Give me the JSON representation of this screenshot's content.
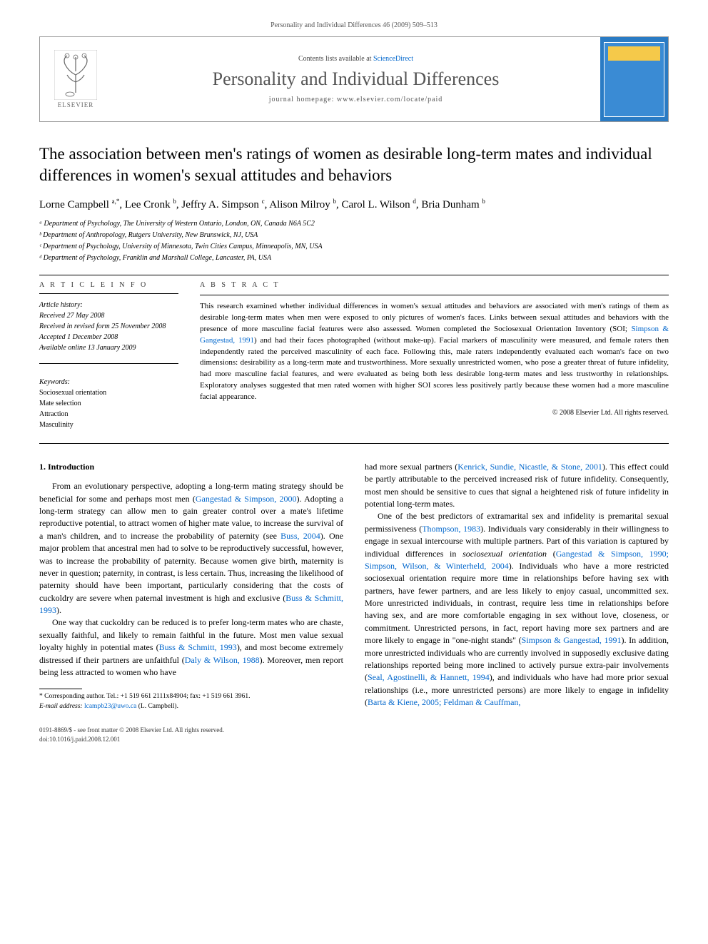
{
  "running_head": "Personality and Individual Differences 46 (2009) 509–513",
  "masthead": {
    "publisher": "ELSEVIER",
    "contents_prefix": "Contents lists available at ",
    "contents_link": "ScienceDirect",
    "journal": "Personality and Individual Differences",
    "homepage_prefix": "journal homepage: ",
    "homepage": "www.elsevier.com/locate/paid"
  },
  "title": "The association between men's ratings of women as desirable long-term mates and individual differences in women's sexual attitudes and behaviors",
  "authors_html": "Lorne Campbell <sup>a,*</sup>, Lee Cronk <sup>b</sup>, Jeffry A. Simpson <sup>c</sup>, Alison Milroy <sup>b</sup>, Carol L. Wilson <sup>d</sup>, Bria Dunham <sup>b</sup>",
  "affiliations": [
    "ᵃ Department of Psychology, The University of Western Ontario, London, ON, Canada N6A 5C2",
    "ᵇ Department of Anthropology, Rutgers University, New Brunswick, NJ, USA",
    "ᶜ Department of Psychology, University of Minnesota, Twin Cities Campus, Minneapolis, MN, USA",
    "ᵈ Department of Psychology, Franklin and Marshall College, Lancaster, PA, USA"
  ],
  "info_head": "A R T I C L E   I N F O",
  "abstract_head": "A B S T R A C T",
  "history": {
    "label": "Article history:",
    "received": "Received 27 May 2008",
    "revised": "Received in revised form 25 November 2008",
    "accepted": "Accepted 1 December 2008",
    "online": "Available online 13 January 2009"
  },
  "keywords": {
    "label": "Keywords:",
    "items": [
      "Sociosexual orientation",
      "Mate selection",
      "Attraction",
      "Masculinity"
    ]
  },
  "abstract": "This research examined whether individual differences in women's sexual attitudes and behaviors are associated with men's ratings of them as desirable long-term mates when men were exposed to only pictures of women's faces. Links between sexual attitudes and behaviors with the presence of more masculine facial features were also assessed. Women completed the Sociosexual Orientation Inventory (SOI; <span class=\"abstract-link\">Simpson & Gangestad, 1991</span>) and had their faces photographed (without make-up). Facial markers of masculinity were measured, and female raters then independently rated the perceived masculinity of each face. Following this, male raters independently evaluated each woman's face on two dimensions: desirability as a long-term mate and trustworthiness. More sexually unrestricted women, who pose a greater threat of future infidelity, had more masculine facial features, and were evaluated as being both less desirable long-term mates and less trustworthy in relationships. Exploratory analyses suggested that men rated women with higher SOI scores less positively partly because these women had a more masculine facial appearance.",
  "copyright": "© 2008 Elsevier Ltd. All rights reserved.",
  "section1_head": "1. Introduction",
  "para1": "From an evolutionary perspective, adopting a long-term mating strategy should be beneficial for some and perhaps most men (<span class=\"cite\">Gangestad & Simpson, 2000</span>). Adopting a long-term strategy can allow men to gain greater control over a mate's lifetime reproductive potential, to attract women of higher mate value, to increase the survival of a man's children, and to increase the probability of paternity (see <span class=\"cite\">Buss, 2004</span>). One major problem that ancestral men had to solve to be reproductively successful, however, was to increase the probability of paternity. Because women give birth, maternity is never in question; paternity, in contrast, is less certain. Thus, increasing the likelihood of paternity should have been important, particularly considering that the costs of cuckoldry are severe when paternal investment is high and exclusive (<span class=\"cite\">Buss & Schmitt, 1993</span>).",
  "para2": "One way that cuckoldry can be reduced is to prefer long-term mates who are chaste, sexually faithful, and likely to remain faithful in the future. Most men value sexual loyalty highly in potential mates (<span class=\"cite\">Buss & Schmitt, 1993</span>), and most become extremely distressed if their partners are unfaithful (<span class=\"cite\">Daly & Wilson, 1988</span>). Moreover, men report being less attracted to women who have",
  "para3": "had more sexual partners (<span class=\"cite\">Kenrick, Sundie, Nicastle, & Stone, 2001</span>). This effect could be partly attributable to the perceived increased risk of future infidelity. Consequently, most men should be sensitive to cues that signal a heightened risk of future infidelity in potential long-term mates.",
  "para4": "One of the best predictors of extramarital sex and infidelity is premarital sexual permissiveness (<span class=\"cite\">Thompson, 1983</span>). Individuals vary considerably in their willingness to engage in sexual intercourse with multiple partners. Part of this variation is captured by individual differences in <i>sociosexual orientation</i> (<span class=\"cite\">Gangestad & Simpson, 1990; Simpson, Wilson, & Winterheld, 2004</span>). Individuals who have a more restricted sociosexual orientation require more time in relationships before having sex with partners, have fewer partners, and are less likely to enjoy casual, uncommitted sex. More unrestricted individuals, in contrast, require less time in relationships before having sex, and are more comfortable engaging in sex without love, closeness, or commitment. Unrestricted persons, in fact, report having more sex partners and are more likely to engage in \"one-night stands\" (<span class=\"cite\">Simpson & Gangestad, 1991</span>). In addition, more unrestricted individuals who are currently involved in supposedly exclusive dating relationships reported being more inclined to actively pursue extra-pair involvements (<span class=\"cite\">Seal, Agostinelli, & Hannett, 1994</span>), and individuals who have had more prior sexual relationships (i.e., more unrestricted persons) are more likely to engage in infidelity (<span class=\"cite\">Barta & Kiene, 2005; Feldman & Cauffman,</span>",
  "footnote": {
    "corr": "* Corresponding author. Tel.: +1 519 661 2111x84904; fax: +1 519 661 3961.",
    "email_label": "E-mail address:",
    "email": "lcampb23@uwo.ca",
    "email_suffix": "(L. Campbell)."
  },
  "footer": {
    "issn": "0191-8869/$ - see front matter © 2008 Elsevier Ltd. All rights reserved.",
    "doi": "doi:10.1016/j.paid.2008.12.001"
  },
  "colors": {
    "link": "#0066cc",
    "journal_name": "#555555",
    "cover_bg": "#2a7bc4",
    "cover_accent": "#f5c94a",
    "text": "#000000",
    "border": "#999999"
  },
  "typography": {
    "body_pt": 12,
    "title_pt": 23,
    "journal_pt": 26,
    "abstract_pt": 11,
    "small_pt": 10,
    "footnote_pt": 9.5
  }
}
